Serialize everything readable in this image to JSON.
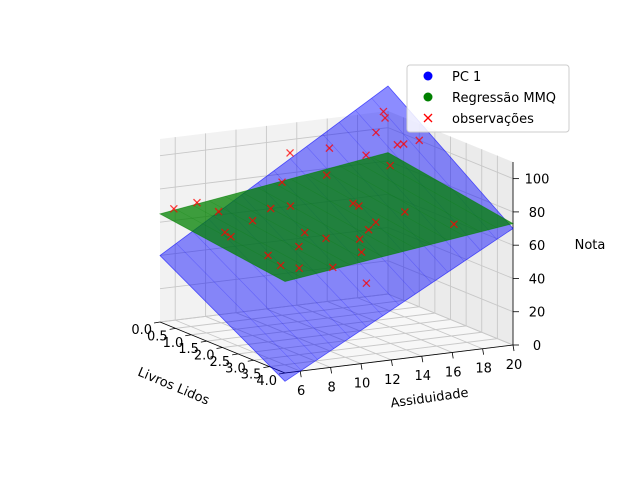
{
  "chart_data": {
    "type": "scatter",
    "projection": "3d",
    "title": "",
    "xlabel": "Livros Lidos",
    "ylabel": "Assiduidade",
    "zlabel": "Nota",
    "xlim": [
      0,
      4
    ],
    "ylim": [
      5,
      20
    ],
    "zlim": [
      0,
      110
    ],
    "xticks": [
      "0.0",
      "0.5",
      "1.0",
      "1.5",
      "2.0",
      "2.5",
      "3.0",
      "3.5",
      "4.0"
    ],
    "yticks": [
      "6",
      "8",
      "10",
      "12",
      "14",
      "16",
      "18",
      "20"
    ],
    "zticks": [
      "0",
      "20",
      "40",
      "60",
      "80",
      "100"
    ],
    "grid": true,
    "legend": {
      "placement": "top-right",
      "entries": [
        {
          "label": "PC 1",
          "marker": "circle",
          "color": "#0000ff"
        },
        {
          "label": "Regressão MMQ",
          "marker": "circle",
          "color": "#008000"
        },
        {
          "label": "observações",
          "marker": "x",
          "color": "#ff0000"
        }
      ]
    },
    "series": [
      {
        "name": "PC 1",
        "kind": "plane",
        "color": "#0000ff",
        "alpha": 0.45,
        "corners": [
          {
            "x": 4.0,
            "y": 5,
            "z": -5
          },
          {
            "x": 4.0,
            "y": 20,
            "z": 70
          },
          {
            "x": 0.0,
            "y": 20,
            "z": 125
          },
          {
            "x": 0.0,
            "y": 5,
            "z": 40
          }
        ]
      },
      {
        "name": "Regressão MMQ",
        "kind": "plane",
        "color": "#008000",
        "alpha": 0.75,
        "corners": [
          {
            "x": 4.0,
            "y": 5,
            "z": 55
          },
          {
            "x": 4.0,
            "y": 20,
            "z": 73
          },
          {
            "x": 0.0,
            "y": 20,
            "z": 85
          },
          {
            "x": 0.0,
            "y": 5,
            "z": 65
          }
        ]
      },
      {
        "name": "observações",
        "kind": "points",
        "marker": "x",
        "color": "#ff0000",
        "points": [
          {
            "x": 0.2,
            "y": 5.5,
            "z": 69
          },
          {
            "x": 0.6,
            "y": 6.2,
            "z": 75
          },
          {
            "x": 1.0,
            "y": 6.8,
            "z": 72
          },
          {
            "x": 1.3,
            "y": 6.6,
            "z": 62
          },
          {
            "x": 1.2,
            "y": 7.2,
            "z": 58
          },
          {
            "x": 1.6,
            "y": 7.8,
            "z": 70
          },
          {
            "x": 2.0,
            "y": 8.0,
            "z": 52
          },
          {
            "x": 2.5,
            "y": 7.8,
            "z": 50
          },
          {
            "x": 2.8,
            "y": 8.4,
            "z": 50
          },
          {
            "x": 2.5,
            "y": 9.0,
            "z": 60
          },
          {
            "x": 1.5,
            "y": 9.2,
            "z": 75
          },
          {
            "x": 3.0,
            "y": 10.2,
            "z": 50
          },
          {
            "x": 2.2,
            "y": 10.0,
            "z": 65
          },
          {
            "x": 1.5,
            "y": 10.5,
            "z": 75
          },
          {
            "x": 2.2,
            "y": 11.4,
            "z": 60
          },
          {
            "x": 3.2,
            "y": 12.0,
            "z": 40
          },
          {
            "x": 2.8,
            "y": 12.5,
            "z": 55
          },
          {
            "x": 2.5,
            "y": 13.0,
            "z": 60
          },
          {
            "x": 1.0,
            "y": 11.5,
            "z": 102
          },
          {
            "x": 0.5,
            "y": 12.0,
            "z": 80
          },
          {
            "x": 1.2,
            "y": 13.5,
            "z": 88
          },
          {
            "x": 0.8,
            "y": 14.5,
            "z": 100
          },
          {
            "x": 1.8,
            "y": 14.0,
            "z": 75
          },
          {
            "x": 2.2,
            "y": 14.2,
            "z": 62
          },
          {
            "x": 1.5,
            "y": 15.0,
            "z": 70
          },
          {
            "x": 1.8,
            "y": 15.5,
            "z": 62
          },
          {
            "x": 1.0,
            "y": 16.5,
            "z": 95
          },
          {
            "x": 2.0,
            "y": 17.0,
            "z": 68
          },
          {
            "x": 0.8,
            "y": 18.5,
            "z": 85
          },
          {
            "x": 0.2,
            "y": 18.8,
            "z": 100
          },
          {
            "x": 2.5,
            "y": 19.2,
            "z": 62
          },
          {
            "x": 1.0,
            "y": 20.0,
            "z": 100
          },
          {
            "x": 0.6,
            "y": 19.8,
            "z": 95
          },
          {
            "x": 0.0,
            "y": 19.7,
            "z": 110
          },
          {
            "x": 0.3,
            "y": 20.0,
            "z": 92
          },
          {
            "x": 0.1,
            "y": 19.6,
            "z": 107
          }
        ]
      }
    ]
  }
}
